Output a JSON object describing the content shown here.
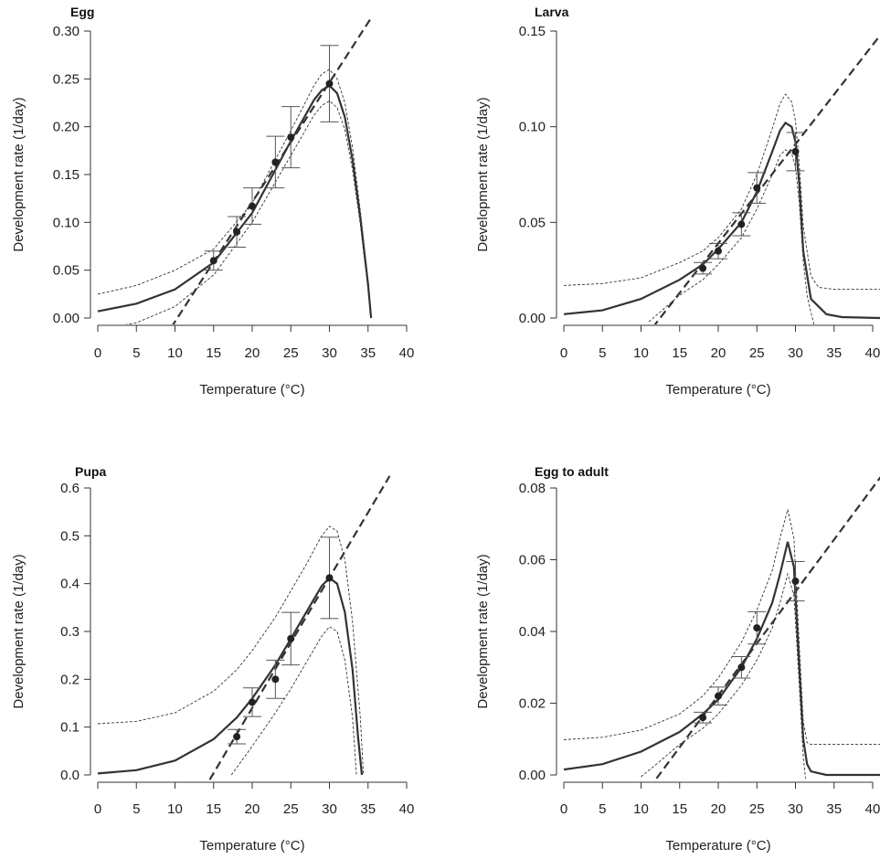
{
  "chart_data": [
    {
      "type": "scatter",
      "title": "Egg",
      "xlabel": "Temperature (°C)",
      "ylabel": "Development rate (1/day)",
      "xlim": [
        0,
        40
      ],
      "ylim": [
        0,
        0.3
      ],
      "x_ticks": [
        0,
        5,
        10,
        15,
        20,
        25,
        30,
        35,
        40
      ],
      "y_ticks": [
        "0.00",
        "0.05",
        "0.10",
        "0.15",
        "0.20",
        "0.25",
        "0.30"
      ],
      "observed": {
        "x": [
          15,
          18,
          20,
          23,
          25,
          30
        ],
        "y": [
          0.06,
          0.09,
          0.117,
          0.163,
          0.189,
          0.245
        ],
        "err": [
          0.01,
          0.016,
          0.019,
          0.027,
          0.032,
          0.04
        ]
      },
      "fitted_curve": {
        "x": [
          0,
          5,
          10,
          15,
          20,
          25,
          28,
          29,
          30,
          31,
          32,
          33,
          34,
          35,
          35.4
        ],
        "y": [
          0.007,
          0.015,
          0.03,
          0.058,
          0.11,
          0.185,
          0.228,
          0.238,
          0.243,
          0.235,
          0.21,
          0.165,
          0.105,
          0.035,
          0
        ]
      },
      "upper_band": {
        "x": [
          0,
          5,
          10,
          15,
          20,
          25,
          28,
          29,
          30,
          31,
          32,
          33,
          34,
          35,
          35.4
        ],
        "y": [
          0.025,
          0.034,
          0.05,
          0.072,
          0.12,
          0.196,
          0.243,
          0.255,
          0.26,
          0.25,
          0.225,
          0.178,
          0.112,
          0.038,
          0
        ]
      },
      "lower_band": {
        "x": [
          0,
          5,
          10,
          15,
          20,
          25,
          28,
          29,
          30,
          31,
          32,
          33,
          34,
          35,
          35.4
        ],
        "y": [
          -0.012,
          -0.005,
          0.012,
          0.045,
          0.1,
          0.17,
          0.212,
          0.222,
          0.227,
          0.22,
          0.197,
          0.155,
          0.098,
          0.03,
          0
        ]
      },
      "linear_fit": {
        "x": [
          9.5,
          35.5
        ],
        "y": [
          -0.01,
          0.315
        ]
      }
    },
    {
      "type": "scatter",
      "title": "Larva",
      "xlabel": "Temperature (°C)",
      "ylabel": "Development rate (1/day)",
      "xlim": [
        0,
        40
      ],
      "ylim": [
        0,
        0.15
      ],
      "x_ticks": [
        0,
        5,
        10,
        15,
        20,
        25,
        30,
        35,
        40
      ],
      "y_ticks": [
        "0.00",
        "0.05",
        "0.10",
        "0.15"
      ],
      "observed": {
        "x": [
          18,
          20,
          23,
          25,
          30
        ],
        "y": [
          0.026,
          0.035,
          0.049,
          0.068,
          0.087
        ],
        "err": [
          0.003,
          0.004,
          0.006,
          0.008,
          0.01
        ]
      },
      "fitted_curve": {
        "x": [
          0,
          5,
          10,
          15,
          18,
          20,
          23,
          25,
          27,
          28,
          28.7,
          29.5,
          30,
          30.5,
          31,
          32,
          34,
          36,
          41
        ],
        "y": [
          0.002,
          0.004,
          0.01,
          0.02,
          0.028,
          0.036,
          0.05,
          0.066,
          0.087,
          0.098,
          0.102,
          0.1,
          0.092,
          0.07,
          0.035,
          0.01,
          0.002,
          0.0005,
          0
        ]
      },
      "upper_band": {
        "x": [
          0,
          5,
          10,
          15,
          18,
          20,
          23,
          25,
          27,
          28,
          28.7,
          29.5,
          30,
          30.5,
          31,
          32,
          33,
          35,
          41
        ],
        "y": [
          0.017,
          0.018,
          0.021,
          0.029,
          0.035,
          0.042,
          0.057,
          0.075,
          0.099,
          0.112,
          0.117,
          0.113,
          0.103,
          0.08,
          0.048,
          0.022,
          0.016,
          0.015,
          0.015
        ]
      },
      "lower_band": {
        "x": [
          11,
          15,
          18,
          20,
          23,
          25,
          27,
          28,
          28.7,
          29.5,
          30,
          30.5,
          31,
          31.5,
          32,
          32.5
        ],
        "y": [
          -0.002,
          0.012,
          0.02,
          0.028,
          0.042,
          0.057,
          0.075,
          0.085,
          0.088,
          0.086,
          0.079,
          0.06,
          0.03,
          0.012,
          0.003,
          -0.005
        ]
      },
      "linear_fit": {
        "x": [
          11.5,
          41
        ],
        "y": [
          -0.005,
          0.148
        ]
      }
    },
    {
      "type": "scatter",
      "title": "Pupa",
      "xlabel": "Temperature (°C)",
      "ylabel": "Development rate (1/day)",
      "xlim": [
        0,
        40
      ],
      "ylim": [
        0,
        0.6
      ],
      "x_ticks": [
        0,
        5,
        10,
        15,
        20,
        25,
        30,
        35,
        40
      ],
      "y_ticks": [
        "0.0",
        "0.1",
        "0.2",
        "0.3",
        "0.4",
        "0.5",
        "0.6"
      ],
      "observed": {
        "x": [
          18,
          20,
          23,
          25,
          30
        ],
        "y": [
          0.08,
          0.152,
          0.2,
          0.285,
          0.412
        ],
        "err": [
          0.015,
          0.03,
          0.04,
          0.055,
          0.085
        ]
      },
      "fitted_curve": {
        "x": [
          0,
          5,
          10,
          15,
          18,
          20,
          23,
          25,
          27,
          29,
          30,
          31,
          32,
          33,
          33.7,
          34.2
        ],
        "y": [
          0.003,
          0.01,
          0.03,
          0.075,
          0.12,
          0.16,
          0.23,
          0.285,
          0.34,
          0.395,
          0.412,
          0.4,
          0.34,
          0.22,
          0.08,
          0
        ]
      },
      "upper_band": {
        "x": [
          0,
          5,
          10,
          15,
          18,
          20,
          23,
          25,
          27,
          29,
          30,
          31,
          32,
          33,
          34,
          34.4
        ],
        "y": [
          0.107,
          0.112,
          0.13,
          0.175,
          0.22,
          0.26,
          0.33,
          0.385,
          0.44,
          0.5,
          0.52,
          0.51,
          0.45,
          0.32,
          0.12,
          0
        ]
      },
      "lower_band": {
        "x": [
          17.3,
          20,
          23,
          25,
          27,
          29,
          30,
          31,
          32,
          33,
          33.5
        ],
        "y": [
          0,
          0.06,
          0.13,
          0.18,
          0.235,
          0.29,
          0.31,
          0.3,
          0.24,
          0.12,
          0
        ]
      },
      "linear_fit": {
        "x": [
          14.5,
          37.8
        ],
        "y": [
          -0.01,
          0.625
        ]
      }
    },
    {
      "type": "scatter",
      "title": "Egg to adult",
      "xlabel": "Temperature (°C)",
      "ylabel": "Development rate (1/day)",
      "xlim": [
        0,
        40
      ],
      "ylim": [
        0,
        0.08
      ],
      "x_ticks": [
        0,
        5,
        10,
        15,
        20,
        25,
        30,
        35,
        40
      ],
      "y_ticks": [
        "0.00",
        "0.02",
        "0.04",
        "0.06",
        "0.08"
      ],
      "observed": {
        "x": [
          18,
          20,
          23,
          25,
          30
        ],
        "y": [
          0.016,
          0.022,
          0.03,
          0.041,
          0.054
        ],
        "err": [
          0.0015,
          0.0025,
          0.003,
          0.0045,
          0.0055
        ]
      },
      "fitted_curve": {
        "x": [
          0,
          5,
          10,
          15,
          18,
          20,
          23,
          25,
          27,
          28,
          29,
          29.8,
          30.5,
          31,
          31.5,
          32,
          34,
          41
        ],
        "y": [
          0.0015,
          0.003,
          0.0065,
          0.012,
          0.017,
          0.021,
          0.03,
          0.038,
          0.048,
          0.056,
          0.065,
          0.058,
          0.03,
          0.01,
          0.003,
          0.001,
          0,
          0
        ]
      },
      "upper_band": {
        "x": [
          0,
          5,
          10,
          15,
          18,
          20,
          23,
          25,
          27,
          28,
          29,
          29.8,
          30.5,
          31,
          31.5,
          32,
          35,
          41
        ],
        "y": [
          0.0098,
          0.0105,
          0.0125,
          0.017,
          0.022,
          0.027,
          0.037,
          0.046,
          0.057,
          0.066,
          0.074,
          0.066,
          0.036,
          0.015,
          0.009,
          0.0085,
          0.0085,
          0.0085
        ]
      },
      "lower_band": {
        "x": [
          10,
          12,
          15,
          18,
          20,
          23,
          25,
          27,
          28,
          29,
          29.8,
          30.5,
          31,
          31.3
        ],
        "y": [
          -0.0005,
          0.003,
          0.0085,
          0.013,
          0.017,
          0.025,
          0.032,
          0.041,
          0.048,
          0.056,
          0.05,
          0.025,
          0.005,
          -0.001
        ]
      },
      "linear_fit": {
        "x": [
          12,
          41
        ],
        "y": [
          -0.001,
          0.083
        ]
      }
    }
  ]
}
